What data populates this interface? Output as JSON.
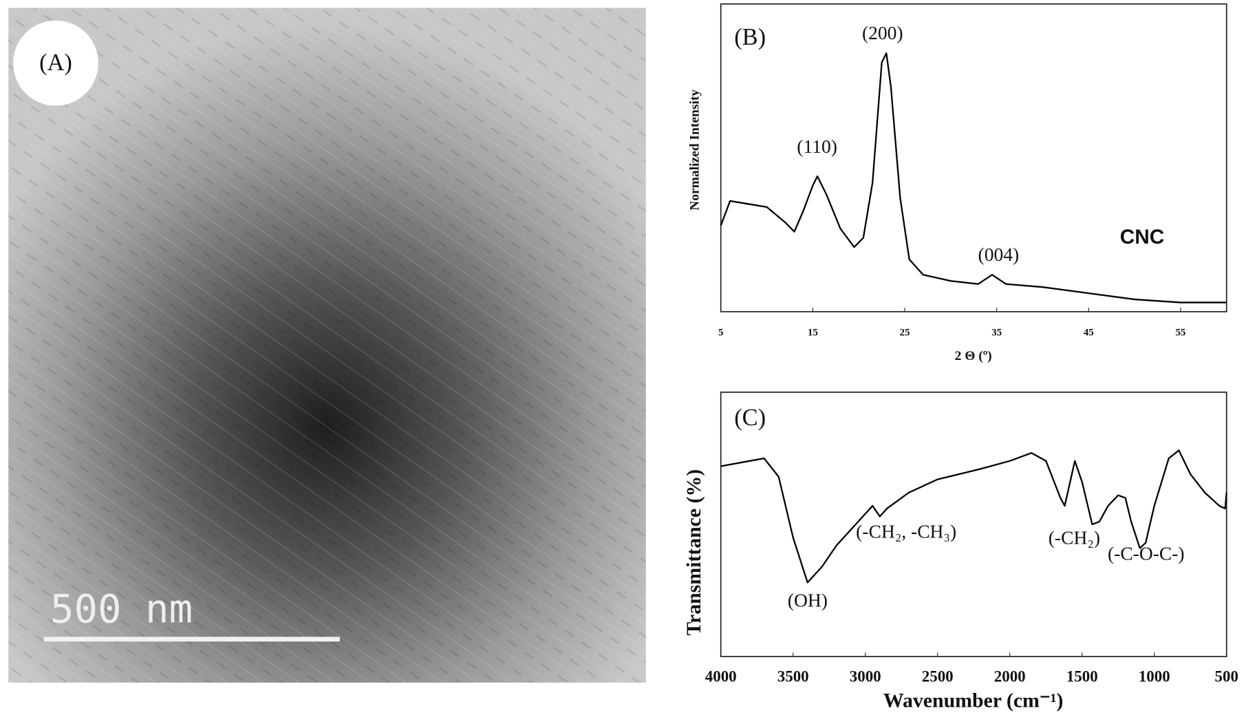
{
  "panel_a": {
    "label": "(A)",
    "scale_bar": "500 nm"
  },
  "chart_data": [
    {
      "type": "line",
      "panel": "(B)",
      "x_label": "2 Θ (º)",
      "y_label": "Normalized Intensity",
      "annotations": [
        "(200)",
        "(110)",
        "(004)",
        "CNC"
      ],
      "xlim": [
        5,
        60
      ],
      "xticks": [
        5,
        15,
        25,
        35,
        45,
        55
      ],
      "ylim": [
        0,
        1
      ],
      "x": [
        5,
        6,
        8,
        10,
        12,
        13,
        14,
        15,
        15.5,
        16.5,
        18,
        19.5,
        20.5,
        21.5,
        22.5,
        23,
        23.5,
        24.5,
        25.5,
        27,
        30,
        33,
        34.5,
        36,
        40,
        45,
        50,
        55,
        60
      ],
      "series": [
        {
          "color": "#000000",
          "values": [
            0.28,
            0.36,
            0.35,
            0.34,
            0.29,
            0.26,
            0.33,
            0.41,
            0.44,
            0.38,
            0.27,
            0.21,
            0.24,
            0.42,
            0.81,
            0.84,
            0.73,
            0.37,
            0.17,
            0.12,
            0.1,
            0.09,
            0.12,
            0.09,
            0.08,
            0.06,
            0.04,
            0.03,
            0.03
          ]
        }
      ]
    },
    {
      "type": "line",
      "panel": "(C)",
      "x_label": "Wavenumber (cm⁻¹)",
      "y_label": "Transmittance  (%)",
      "annotations": [
        "(OH)",
        "(-CH₂, -CH₃)",
        "(-CH₂)",
        "(-C-O-C-)"
      ],
      "xlim": [
        4000,
        500
      ],
      "xticks": [
        4000,
        3500,
        3000,
        2500,
        2000,
        1500,
        1000,
        500
      ],
      "ylim": [
        0,
        1
      ],
      "x": [
        4000,
        3800,
        3700,
        3600,
        3500,
        3400,
        3300,
        3200,
        3100,
        3000,
        2950,
        2900,
        2850,
        2700,
        2500,
        2200,
        2000,
        1850,
        1750,
        1650,
        1620,
        1550,
        1500,
        1430,
        1380,
        1320,
        1250,
        1200,
        1160,
        1100,
        1060,
        1000,
        900,
        830,
        750,
        650,
        550,
        510,
        500
      ],
      "series": [
        {
          "color": "#000000",
          "values": [
            0.72,
            0.74,
            0.75,
            0.68,
            0.45,
            0.28,
            0.34,
            0.42,
            0.48,
            0.54,
            0.57,
            0.53,
            0.56,
            0.62,
            0.67,
            0.71,
            0.74,
            0.77,
            0.74,
            0.6,
            0.57,
            0.74,
            0.66,
            0.5,
            0.51,
            0.57,
            0.61,
            0.6,
            0.51,
            0.41,
            0.43,
            0.57,
            0.75,
            0.78,
            0.69,
            0.62,
            0.57,
            0.56,
            0.62
          ]
        }
      ]
    }
  ]
}
